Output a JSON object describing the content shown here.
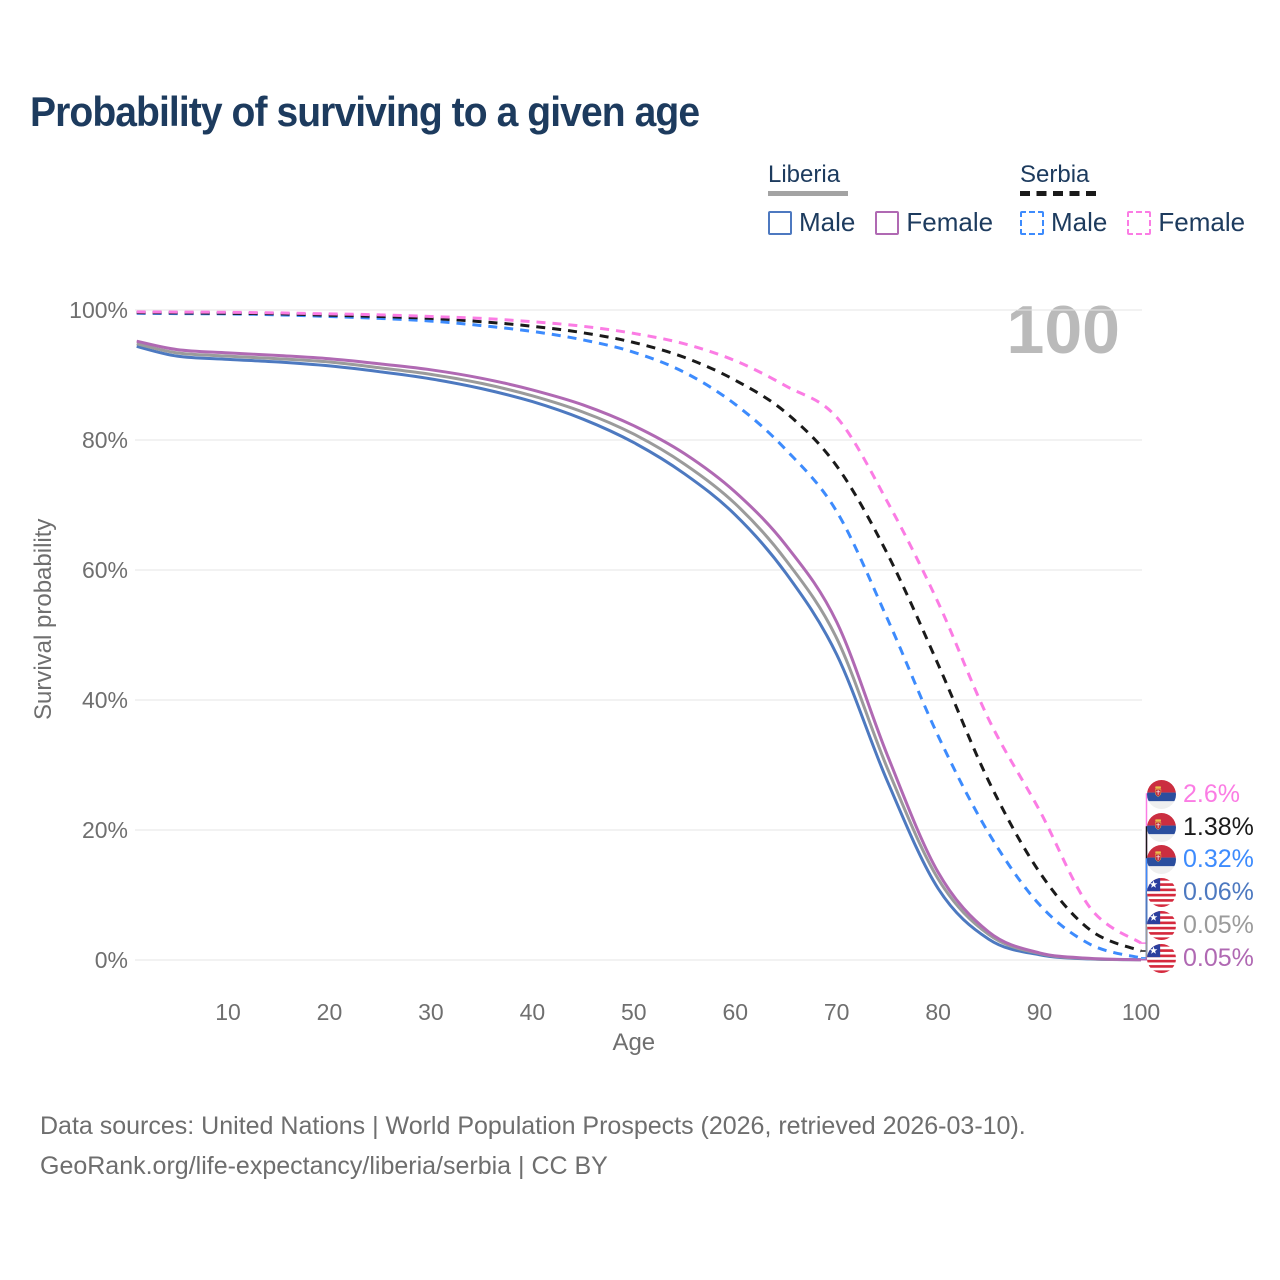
{
  "header": {
    "title": "Probability of surviving to a given age"
  },
  "watermark": "100",
  "legend": {
    "groups": [
      {
        "name": "Liberia",
        "line_style": "solid",
        "rule_color": "#a3a3a3",
        "items": [
          {
            "label": "Male",
            "color": "#4d79c0"
          },
          {
            "label": "Female",
            "color": "#b069b3"
          }
        ]
      },
      {
        "name": "Serbia",
        "line_style": "dashed",
        "rule_color": "#1a1a1a",
        "items": [
          {
            "label": "Male",
            "color": "#3d8bfd"
          },
          {
            "label": "Female",
            "color": "#fb7ce4"
          }
        ]
      }
    ]
  },
  "chart_data": {
    "type": "line",
    "title": "Probability of surviving to a given age",
    "xlabel": "Age",
    "ylabel": "Survival probability",
    "xlim": [
      0,
      100
    ],
    "ylim": [
      0,
      100
    ],
    "grid": "horizontal",
    "legend_position": "top-right",
    "x_ticks": [
      10,
      20,
      30,
      40,
      50,
      60,
      70,
      80,
      90,
      100
    ],
    "y_ticks": [
      {
        "label": "100%",
        "value": 100
      },
      {
        "label": "80%",
        "value": 80
      },
      {
        "label": "60%",
        "value": 60
      },
      {
        "label": "40%",
        "value": 40
      },
      {
        "label": "20%",
        "value": 20
      },
      {
        "label": "0%",
        "value": 0
      }
    ],
    "ages": [
      1,
      5,
      10,
      15,
      20,
      25,
      30,
      35,
      40,
      45,
      50,
      55,
      60,
      65,
      70,
      75,
      80,
      85,
      90,
      95,
      100
    ],
    "series": [
      {
        "name": "Liberia Male",
        "country": "Liberia",
        "sex": "Male",
        "style": "solid",
        "color": "#4d79c0",
        "end_label": "0.06%",
        "values": [
          94.4,
          92.9,
          92.4,
          92.0,
          91.4,
          90.5,
          89.4,
          87.9,
          85.9,
          83.2,
          79.6,
          74.8,
          68.5,
          59.5,
          47.0,
          27.5,
          11.0,
          3.2,
          0.8,
          0.15,
          0.06
        ]
      },
      {
        "name": "Liberia Both sexes",
        "country": "Liberia",
        "sex": "Both",
        "style": "solid",
        "color": "#9b9b9b",
        "end_label": "0.05%",
        "values": [
          94.8,
          93.4,
          92.9,
          92.5,
          92.0,
          91.1,
          90.1,
          88.7,
          86.8,
          84.3,
          80.9,
          76.3,
          70.2,
          61.5,
          49.5,
          29.5,
          12.5,
          3.9,
          1.0,
          0.2,
          0.05
        ]
      },
      {
        "name": "Liberia Female",
        "country": "Liberia",
        "sex": "Female",
        "style": "solid",
        "color": "#b069b3",
        "end_label": "0.05%",
        "values": [
          95.2,
          93.9,
          93.4,
          93.0,
          92.5,
          91.7,
          90.8,
          89.5,
          87.7,
          85.4,
          82.2,
          77.9,
          72.0,
          63.8,
          52.0,
          31.5,
          13.5,
          4.3,
          1.1,
          0.25,
          0.05
        ]
      },
      {
        "name": "Serbia Male",
        "country": "Serbia",
        "sex": "Male",
        "style": "dashed",
        "color": "#3d8bfd",
        "end_label": "0.32%",
        "values": [
          99.5,
          99.45,
          99.4,
          99.25,
          99.0,
          98.7,
          98.3,
          97.6,
          96.7,
          95.4,
          93.5,
          90.4,
          85.5,
          78.5,
          69.0,
          52.5,
          34.5,
          19.5,
          8.5,
          2.4,
          0.32
        ]
      },
      {
        "name": "Serbia Both sexes",
        "country": "Serbia",
        "sex": "Both",
        "style": "dashed",
        "color": "#1a1a1a",
        "end_label": "1.38%",
        "values": [
          99.6,
          99.55,
          99.5,
          99.4,
          99.2,
          99.0,
          98.7,
          98.2,
          97.5,
          96.5,
          95.0,
          92.7,
          89.2,
          84.2,
          76.0,
          62.5,
          45.5,
          27.5,
          13.5,
          4.6,
          1.38
        ]
      },
      {
        "name": "Serbia Female",
        "country": "Serbia",
        "sex": "Female",
        "style": "dashed",
        "color": "#fb7ce4",
        "end_label": "2.6%",
        "values": [
          99.7,
          99.68,
          99.65,
          99.55,
          99.4,
          99.25,
          99.0,
          98.7,
          98.2,
          97.5,
          96.4,
          94.8,
          92.2,
          88.3,
          83.5,
          70.5,
          55.0,
          37.0,
          23.0,
          8.0,
          2.6
        ]
      }
    ]
  },
  "end_labels": [
    {
      "flag": "serbia",
      "value": "2.6%",
      "color": "#fb7ce4",
      "series": "Serbia Female"
    },
    {
      "flag": "serbia",
      "value": "1.38%",
      "color": "#1a1a1a",
      "series": "Serbia Both sexes"
    },
    {
      "flag": "serbia",
      "value": "0.32%",
      "color": "#3d8bfd",
      "series": "Serbia Male"
    },
    {
      "flag": "liberia",
      "value": "0.06%",
      "color": "#4d79c0",
      "series": "Liberia Male"
    },
    {
      "flag": "liberia",
      "value": "0.05%",
      "color": "#9b9b9b",
      "series": "Liberia Both sexes"
    },
    {
      "flag": "liberia",
      "value": "0.05%",
      "color": "#b069b3",
      "series": "Liberia Female"
    }
  ],
  "footer": {
    "line1": "Data sources: United Nations | World Population Prospects (2026, retrieved 2026-03-10).",
    "line2": "GeoRank.org/life-expectancy/liberia/serbia | CC BY"
  },
  "colors": {
    "title": "#1d3b5e",
    "axis_text": "#6f6f6f",
    "gridline": "#e6e6e6",
    "watermark": "#bababa"
  }
}
